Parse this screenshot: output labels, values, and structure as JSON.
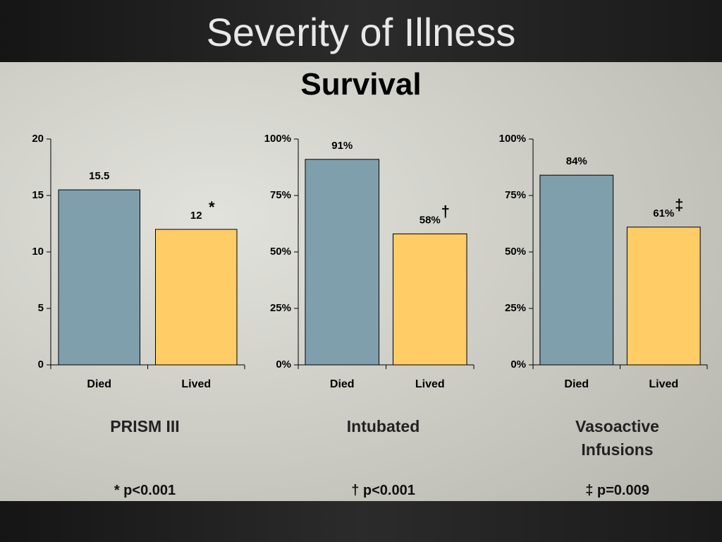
{
  "title": "Severity of Illness",
  "subtitle": "Survival",
  "chart_data": [
    {
      "type": "bar",
      "categories": [
        "Died",
        "Lived"
      ],
      "values": [
        15.5,
        12
      ],
      "colors": [
        "#7f9fad",
        "#ffcc66"
      ],
      "ylim": [
        0,
        20
      ],
      "yticks": [
        0,
        5,
        10,
        15,
        20
      ],
      "annotation": "*",
      "xlabel": "PRISM III",
      "note": "* p<0.001"
    },
    {
      "type": "bar",
      "categories": [
        "Died",
        "Lived"
      ],
      "values": [
        91,
        58
      ],
      "value_labels": [
        "91%",
        "58%"
      ],
      "colors": [
        "#7f9fad",
        "#ffcc66"
      ],
      "ylim": [
        0,
        100
      ],
      "yticks": [
        {
          "value": 0,
          "label": "0%"
        },
        {
          "value": 25,
          "label": "25%"
        },
        {
          "value": 50,
          "label": "50%"
        },
        {
          "value": 75,
          "label": "75%"
        },
        {
          "value": 100,
          "label": "100%"
        }
      ],
      "annotation": "†",
      "xlabel": "Intubated",
      "note": "† p<0.001"
    },
    {
      "type": "bar",
      "categories": [
        "Died",
        "Lived"
      ],
      "values": [
        84,
        61
      ],
      "value_labels": [
        "84%",
        "61%"
      ],
      "colors": [
        "#7f9fad",
        "#ffcc66"
      ],
      "ylim": [
        0,
        100
      ],
      "yticks": [
        {
          "value": 0,
          "label": "0%"
        },
        {
          "value": 25,
          "label": "25%"
        },
        {
          "value": 50,
          "label": "50%"
        },
        {
          "value": 75,
          "label": "75%"
        },
        {
          "value": 100,
          "label": "100%"
        }
      ],
      "annotation": "‡",
      "xlabel": "Vasoactive Infusions",
      "note": "‡ p=0.009"
    }
  ]
}
